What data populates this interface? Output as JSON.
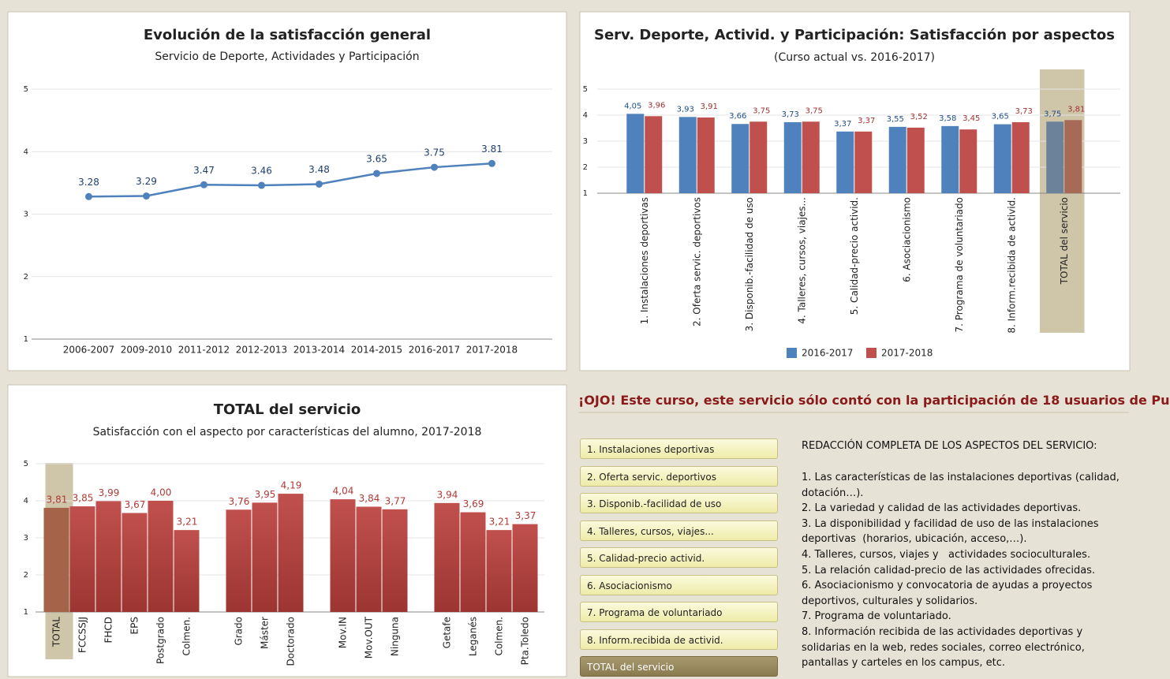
{
  "chart_data": [
    {
      "type": "line",
      "title": "Evolución de la satisfacción general",
      "subtitle": "Servicio de Deporte, Actividades y Participación",
      "categories": [
        "2006-2007",
        "2009-2010",
        "2011-2012",
        "2012-2013",
        "2013-2014",
        "2014-2015",
        "2016-2017",
        "2017-2018"
      ],
      "values": [
        3.28,
        3.29,
        3.47,
        3.46,
        3.48,
        3.65,
        3.75,
        3.81
      ],
      "color": "#4f81bd",
      "ylim": [
        1,
        5
      ],
      "yticks": [
        1,
        2,
        3,
        4,
        5
      ],
      "grid": true
    },
    {
      "type": "bar",
      "title": "Serv. Deporte, Activid. y Participación: Satisfacción por aspectos",
      "subtitle": "(Curso actual vs. 2016-2017)",
      "categories": [
        "1. Instalaciones deportivas",
        "2. Oferta servic. deportivos",
        "3. Disponib.-facilidad de uso",
        "4. Talleres, cursos, viajes...",
        "5. Calidad-precio activid.",
        "6. Asociacionismo",
        "7. Programa de voluntariado",
        "8. Inform.recibida de activid.",
        "TOTAL del servicio"
      ],
      "series": [
        {
          "name": "2016-2017",
          "color": "#4f81bd",
          "values": [
            4.05,
            3.93,
            3.66,
            3.73,
            3.37,
            3.55,
            3.58,
            3.65,
            3.75
          ],
          "value_labels": [
            "4,05",
            "3,93",
            "3,66",
            "3,73",
            "3,37",
            "3,55",
            "3,58",
            "3,65",
            "3,75"
          ]
        },
        {
          "name": "2017-2018",
          "color": "#c0504d",
          "values": [
            3.96,
            3.91,
            3.75,
            3.75,
            3.37,
            3.52,
            3.45,
            3.73,
            3.81
          ],
          "value_labels": [
            "3,96",
            "3,91",
            "3,75",
            "3,75",
            "3,37",
            "3,52",
            "3,45",
            "3,73",
            "3,81"
          ]
        }
      ],
      "ylim": [
        1,
        5
      ],
      "yticks": [
        1,
        2,
        3,
        4,
        5
      ],
      "legend": "bottom"
    },
    {
      "type": "bar",
      "title": "TOTAL del servicio",
      "subtitle": "Satisfacción con el aspecto por características del alumno, 2017-2018",
      "categories": [
        "TOTAL",
        "FCCSSJJ",
        "FHCD",
        "EPS",
        "Postgrado",
        "Colmen.",
        null,
        "Grado",
        "Máster",
        "Doctorado",
        null,
        "Mov.IN",
        "Mov.OUT",
        "Ninguna",
        null,
        "Getafe",
        "Leganés",
        "Colmen.",
        "Pta.Toledo"
      ],
      "values": [
        3.81,
        3.85,
        3.99,
        3.67,
        4.0,
        3.21,
        null,
        3.76,
        3.95,
        4.19,
        null,
        4.04,
        3.84,
        3.77,
        null,
        3.94,
        3.69,
        3.21,
        3.37
      ],
      "value_labels": [
        "3,81",
        "3,85",
        "3,99",
        "3,67",
        "4,00",
        "3,21",
        null,
        "3,76",
        "3,95",
        "4,19",
        null,
        "4,04",
        "3,84",
        "3,77",
        null,
        "3,94",
        "3,69",
        "3,21",
        "3,37"
      ],
      "color": "#c0504d",
      "ylim": [
        1,
        5
      ],
      "yticks": [
        1,
        2,
        3,
        4,
        5
      ]
    }
  ],
  "notice": "¡OJO! Este curso, este servicio sólo contó con la participación de 18 usuarios de Pu",
  "buttons": [
    "1. Instalaciones deportivas",
    "2. Oferta servic. deportivos",
    "3. Disponib.-facilidad de uso",
    "4. Talleres, cursos, viajes...",
    "5. Calidad-precio activid.",
    "6. Asociacionismo",
    "7. Programa de voluntariado",
    "8. Inform.recibida de activid.",
    "TOTAL del servicio"
  ],
  "description": [
    "REDACCIÓN COMPLETA DE LOS ASPECTOS DEL SERVICIO:",
    "1. Las características de las instalaciones deportivas (calidad,",
    "dotación…).",
    "2. La variedad y calidad de las actividades deportivas.",
    "3. La disponibilidad y facilidad de uso de las instalaciones",
    "deportivas  (horarios, ubicación, acceso,…).",
    "4. Talleres, cursos, viajes y   actividades socioculturales.",
    "5. La relación calidad-precio de las actividades ofrecidas.",
    "6. Asociacionismo y convocatoria de ayudas a proyectos",
    "deportivos, culturales y solidarios.",
    "7. Programa de voluntariado.",
    "8. Información recibida de las actividades deportivas y",
    "solidarias en la web, redes sociales, correo electrónico,",
    "pantallas y carteles en los campus, etc."
  ]
}
